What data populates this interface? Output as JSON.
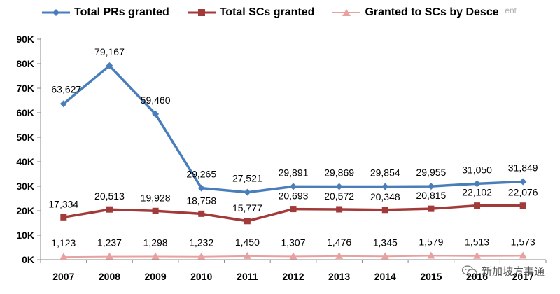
{
  "chart_data": {
    "type": "line",
    "title": "",
    "xlabel": "",
    "ylabel": "",
    "categories": [
      "2007",
      "2008",
      "2009",
      "2010",
      "2011",
      "2012",
      "2013",
      "2014",
      "2015",
      "2016",
      "2017"
    ],
    "ylim": [
      0,
      90000
    ],
    "y_ticks": [
      "0K",
      "10K",
      "20K",
      "30K",
      "40K",
      "50K",
      "60K",
      "70K",
      "80K",
      "90K"
    ],
    "legend_position": "top",
    "grid": false,
    "series": [
      {
        "name": "Total PRs granted",
        "color": "#4A7EBB",
        "marker": "diamond",
        "values": [
          63627,
          79167,
          59460,
          29265,
          27521,
          29891,
          29869,
          29854,
          29955,
          31050,
          31849
        ],
        "labels": [
          "63,627",
          "79,167",
          "59,460",
          "29,265",
          "27,521",
          "29,891",
          "29,869",
          "29,854",
          "29,955",
          "31,050",
          "31,849"
        ]
      },
      {
        "name": "Total SCs granted",
        "color": "#A33A3A",
        "marker": "square",
        "values": [
          17334,
          20513,
          19928,
          18758,
          15777,
          20693,
          20572,
          20348,
          20815,
          22102,
          22076
        ],
        "labels": [
          "17,334",
          "20,513",
          "19,928",
          "18,758",
          "15,777",
          "20,693",
          "20,572",
          "20,348",
          "20,815",
          "22,102",
          "22,076"
        ]
      },
      {
        "name": "Granted to SCs by Desce",
        "color": "#E8A0A0",
        "marker": "triangle",
        "values": [
          1123,
          1237,
          1298,
          1232,
          1450,
          1307,
          1476,
          1345,
          1579,
          1513,
          1573
        ],
        "labels": [
          "1,123",
          "1,237",
          "1,298",
          "1,232",
          "1,450",
          "1,307",
          "1,476",
          "1,345",
          "1,579",
          "1,513",
          "1,573"
        ]
      }
    ]
  },
  "watermarks": {
    "top": "ent",
    "bottom": "新加坡方事通",
    "bottom_icon": "wechat-icon"
  }
}
